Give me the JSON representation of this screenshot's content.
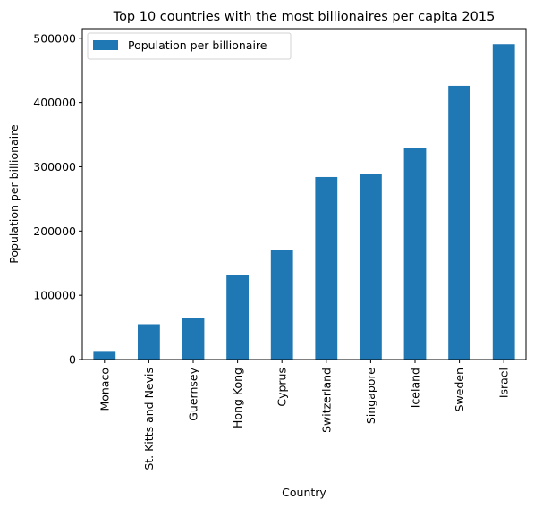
{
  "chart_data": {
    "type": "bar",
    "title": "Top 10 countries with the most billionaires per capita 2015",
    "xlabel": "Country",
    "ylabel": "Population per billionaire",
    "categories": [
      "Monaco",
      "St. Kitts and Nevis",
      "Guernsey",
      "Hong Kong",
      "Cyprus",
      "Switzerland",
      "Singapore",
      "Iceland",
      "Sweden",
      "Israel"
    ],
    "series": [
      {
        "name": "Population per billionaire",
        "values": [
          12000,
          55000,
          65000,
          132000,
          171000,
          284000,
          289000,
          329000,
          426000,
          491000
        ],
        "color": "#1f77b4"
      }
    ],
    "yticks": [
      0,
      100000,
      200000,
      300000,
      400000,
      500000
    ],
    "ytick_labels": [
      "0",
      "100000",
      "200000",
      "300000",
      "400000",
      "500000"
    ],
    "ylim": [
      0,
      515000
    ],
    "grid": false,
    "legend": "top-left"
  }
}
